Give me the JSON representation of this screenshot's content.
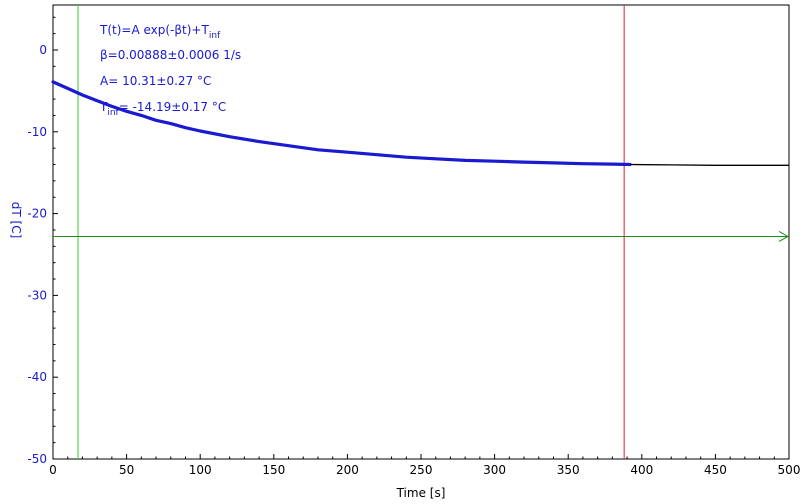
{
  "chart_data": {
    "type": "line",
    "xlabel": "Time [s]",
    "ylabel": "dT [C]",
    "xlim": [
      0,
      500
    ],
    "ylim": [
      -50,
      5.5
    ],
    "xticks": [
      0,
      50,
      100,
      150,
      200,
      250,
      300,
      350,
      400,
      450,
      500
    ],
    "yticks": [
      0,
      -10,
      -20,
      -30,
      -40,
      -50
    ],
    "grid": false,
    "annotations": {
      "line1_main": "T(t)=A exp(-βt)+T",
      "line1_sub": "inf",
      "line2": "β=0.00888±0.0006 1/s",
      "line3": "A= 10.31±0.27 °C",
      "line4_main": "T",
      "line4_sub": "inf",
      "line4_rest": "= -14.19±0.17 °C"
    },
    "cursors": {
      "green_vertical_x": 17,
      "red_vertical_x": 388,
      "green_horizontal_y": -22.8
    },
    "series": [
      {
        "role": "fit",
        "color": "#1a1ad0",
        "x": [
          0,
          10,
          20,
          30,
          40,
          50,
          60,
          70,
          80,
          90,
          100,
          120,
          140,
          160,
          180,
          200,
          220,
          240,
          260,
          280,
          300,
          320,
          340,
          360,
          380,
          392
        ],
        "y": [
          -3.9,
          -4.7,
          -5.5,
          -6.2,
          -6.9,
          -7.5,
          -8.0,
          -8.6,
          -9.0,
          -9.5,
          -9.9,
          -10.6,
          -11.2,
          -11.7,
          -12.2,
          -12.5,
          -12.8,
          -13.1,
          -13.3,
          -13.5,
          -13.6,
          -13.7,
          -13.8,
          -13.9,
          -13.95,
          -14.0
        ]
      },
      {
        "role": "measured-tail",
        "color": "#000000",
        "x": [
          392,
          420,
          450,
          480,
          500
        ],
        "y": [
          -14.0,
          -14.05,
          -14.1,
          -14.1,
          -14.1
        ]
      }
    ],
    "colors": {
      "axis": "#000000",
      "fit": "#1a1ad0",
      "tail": "#000000",
      "green_cursor": "#33cc33",
      "red_cursor": "#dd2020",
      "horizontal_cursor": "#1a8a1a"
    }
  }
}
